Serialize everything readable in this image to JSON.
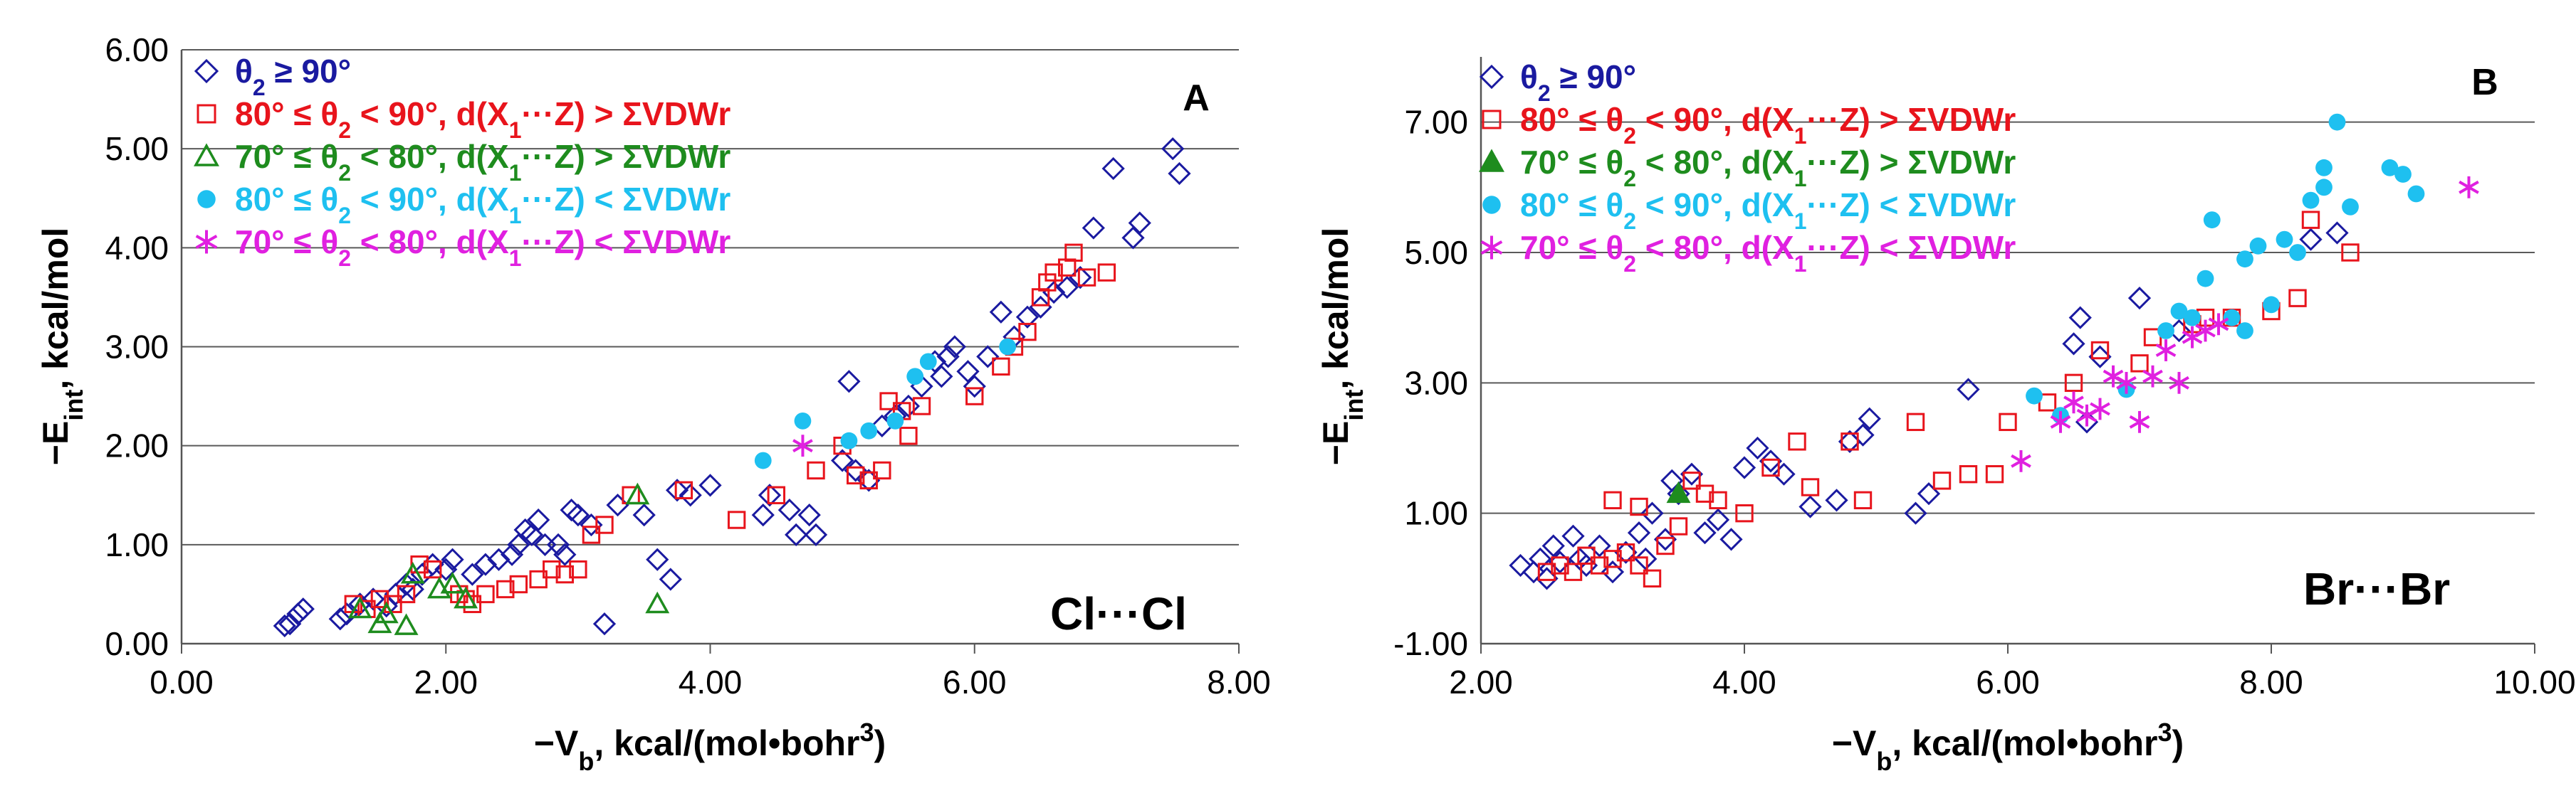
{
  "chart_data": [
    {
      "panel": "A",
      "type": "scatter",
      "annotation": "Cl···Cl",
      "xlabel": "−V b, kcal/(mol•bohr³)",
      "xlabel_parts": [
        "−V",
        "b",
        ", kcal/(mol•bohr",
        "3",
        ")"
      ],
      "ylabel_parts": [
        "−E",
        "int",
        ", kcal/mol"
      ],
      "xlim": [
        0,
        8
      ],
      "ylim": [
        0,
        6
      ],
      "xticks": [
        "0.00",
        "2.00",
        "4.00",
        "6.00",
        "8.00"
      ],
      "yticks": [
        "0.00",
        "1.00",
        "2.00",
        "3.00",
        "4.00",
        "5.00",
        "6.00"
      ],
      "series": [
        {
          "name": "θ₂ ≥ 90°",
          "marker": "diamond",
          "color": "#1a1aa0",
          "points": [
            [
              0.78,
              0.18
            ],
            [
              0.82,
              0.2
            ],
            [
              0.88,
              0.3
            ],
            [
              0.92,
              0.35
            ],
            [
              1.2,
              0.25
            ],
            [
              1.25,
              0.3
            ],
            [
              1.35,
              0.4
            ],
            [
              1.45,
              0.45
            ],
            [
              1.55,
              0.38
            ],
            [
              1.62,
              0.5
            ],
            [
              1.7,
              0.6
            ],
            [
              1.75,
              0.55
            ],
            [
              1.82,
              0.7
            ],
            [
              1.9,
              0.8
            ],
            [
              2.0,
              0.75
            ],
            [
              2.05,
              0.85
            ],
            [
              2.2,
              0.7
            ],
            [
              2.3,
              0.8
            ],
            [
              2.4,
              0.85
            ],
            [
              2.5,
              0.9
            ],
            [
              2.55,
              1.0
            ],
            [
              2.6,
              1.15
            ],
            [
              2.65,
              1.1
            ],
            [
              2.7,
              1.25
            ],
            [
              2.75,
              1.0
            ],
            [
              2.85,
              1.0
            ],
            [
              2.9,
              0.9
            ],
            [
              2.95,
              1.35
            ],
            [
              3.0,
              1.3
            ],
            [
              3.1,
              1.2
            ],
            [
              3.2,
              0.2
            ],
            [
              3.3,
              1.4
            ],
            [
              3.5,
              1.3
            ],
            [
              3.6,
              0.85
            ],
            [
              3.7,
              0.65
            ],
            [
              3.75,
              1.55
            ],
            [
              3.85,
              1.5
            ],
            [
              4.0,
              1.6
            ],
            [
              4.4,
              1.3
            ],
            [
              4.45,
              1.5
            ],
            [
              4.6,
              1.35
            ],
            [
              4.65,
              1.1
            ],
            [
              4.75,
              1.3
            ],
            [
              4.8,
              1.1
            ],
            [
              5.0,
              1.85
            ],
            [
              5.1,
              1.75
            ],
            [
              5.05,
              2.65
            ],
            [
              5.2,
              1.65
            ],
            [
              5.3,
              2.2
            ],
            [
              5.4,
              2.3
            ],
            [
              5.5,
              2.4
            ],
            [
              5.6,
              2.6
            ],
            [
              5.7,
              2.85
            ],
            [
              5.75,
              2.7
            ],
            [
              5.8,
              2.9
            ],
            [
              5.85,
              3.0
            ],
            [
              5.95,
              2.75
            ],
            [
              6.0,
              2.6
            ],
            [
              6.1,
              2.9
            ],
            [
              6.2,
              3.35
            ],
            [
              6.3,
              3.1
            ],
            [
              6.4,
              3.3
            ],
            [
              6.5,
              3.4
            ],
            [
              6.6,
              3.55
            ],
            [
              6.7,
              3.6
            ],
            [
              6.8,
              3.7
            ],
            [
              6.9,
              4.2
            ],
            [
              7.05,
              4.8
            ],
            [
              7.2,
              4.1
            ],
            [
              7.25,
              4.25
            ],
            [
              7.5,
              5.0
            ],
            [
              7.55,
              4.75
            ]
          ]
        },
        {
          "name": "80° ≤ θ₂ < 90°, d(X₁···Z) > ΣVDWr",
          "marker": "square",
          "color": "#e8141c",
          "points": [
            [
              1.3,
              0.4
            ],
            [
              1.4,
              0.35
            ],
            [
              1.5,
              0.45
            ],
            [
              1.6,
              0.4
            ],
            [
              1.7,
              0.5
            ],
            [
              1.8,
              0.8
            ],
            [
              1.9,
              0.75
            ],
            [
              2.1,
              0.5
            ],
            [
              2.15,
              0.45
            ],
            [
              2.2,
              0.4
            ],
            [
              2.3,
              0.5
            ],
            [
              2.45,
              0.55
            ],
            [
              2.55,
              0.6
            ],
            [
              2.7,
              0.65
            ],
            [
              2.8,
              0.75
            ],
            [
              2.9,
              0.7
            ],
            [
              3.0,
              0.75
            ],
            [
              3.1,
              1.1
            ],
            [
              3.2,
              1.2
            ],
            [
              3.4,
              1.5
            ],
            [
              3.8,
              1.55
            ],
            [
              4.2,
              1.25
            ],
            [
              4.5,
              1.5
            ],
            [
              4.8,
              1.75
            ],
            [
              5.0,
              2.0
            ],
            [
              5.1,
              1.7
            ],
            [
              5.2,
              1.65
            ],
            [
              5.3,
              1.75
            ],
            [
              5.35,
              2.45
            ],
            [
              5.45,
              2.35
            ],
            [
              5.5,
              2.1
            ],
            [
              5.6,
              2.4
            ],
            [
              6.0,
              2.5
            ],
            [
              6.2,
              2.8
            ],
            [
              6.3,
              3.0
            ],
            [
              6.4,
              3.15
            ],
            [
              6.5,
              3.5
            ],
            [
              6.55,
              3.65
            ],
            [
              6.6,
              3.75
            ],
            [
              6.7,
              3.8
            ],
            [
              6.75,
              3.95
            ],
            [
              6.85,
              3.7
            ],
            [
              7.0,
              3.75
            ]
          ]
        },
        {
          "name": "70° ≤ θ₂ < 80°, d(X₁···Z) > ΣVDWr",
          "marker": "triangle",
          "color": "#1e8c1e",
          "points": [
            [
              1.35,
              0.35
            ],
            [
              1.5,
              0.2
            ],
            [
              1.55,
              0.3
            ],
            [
              1.7,
              0.18
            ],
            [
              1.75,
              0.7
            ],
            [
              1.95,
              0.55
            ],
            [
              2.05,
              0.6
            ],
            [
              2.15,
              0.45
            ],
            [
              3.45,
              1.5
            ],
            [
              3.6,
              0.4
            ]
          ]
        },
        {
          "name": "80° ≤ θ₂ < 90°, d(X₁···Z) < ΣVDWr",
          "marker": "circle",
          "color": "#1ec0f0",
          "points": [
            [
              4.4,
              1.85
            ],
            [
              4.7,
              2.25
            ],
            [
              5.05,
              2.05
            ],
            [
              5.2,
              2.15
            ],
            [
              5.4,
              2.25
            ],
            [
              5.55,
              2.7
            ],
            [
              5.65,
              2.85
            ],
            [
              6.25,
              3.0
            ]
          ]
        },
        {
          "name": "70° ≤ θ₂ < 80°, d(X₁···Z) < ΣVDWr",
          "marker": "asterisk",
          "color": "#e020e0",
          "points": [
            [
              4.7,
              2.0
            ]
          ]
        }
      ]
    },
    {
      "panel": "B",
      "type": "scatter",
      "annotation": "Br···Br",
      "xlabel_parts": [
        "−V",
        "b",
        ", kcal/(mol•bohr",
        "3",
        ")"
      ],
      "ylabel_parts": [
        "−E",
        "int",
        ", kcal/mol"
      ],
      "xlim": [
        2,
        10
      ],
      "ylim": [
        -1,
        8
      ],
      "xticks": [
        "2.00",
        "4.00",
        "6.00",
        "8.00",
        "10.00"
      ],
      "yticks": [
        "-1.00",
        "1.00",
        "3.00",
        "5.00",
        "7.00"
      ],
      "series": [
        {
          "name": "θ₂ ≥ 90°",
          "marker": "diamond",
          "color": "#1a1aa0",
          "points": [
            [
              2.3,
              0.2
            ],
            [
              2.4,
              0.1
            ],
            [
              2.45,
              0.3
            ],
            [
              2.5,
              0.0
            ],
            [
              2.55,
              0.5
            ],
            [
              2.6,
              0.25
            ],
            [
              2.7,
              0.65
            ],
            [
              2.75,
              0.3
            ],
            [
              2.8,
              0.2
            ],
            [
              2.9,
              0.5
            ],
            [
              3.0,
              0.1
            ],
            [
              3.1,
              0.4
            ],
            [
              3.2,
              0.7
            ],
            [
              3.25,
              0.3
            ],
            [
              3.3,
              1.0
            ],
            [
              3.4,
              0.6
            ],
            [
              3.45,
              1.5
            ],
            [
              3.5,
              1.3
            ],
            [
              3.6,
              1.6
            ],
            [
              3.7,
              0.7
            ],
            [
              3.8,
              0.9
            ],
            [
              3.9,
              0.6
            ],
            [
              4.0,
              1.7
            ],
            [
              4.1,
              2.0
            ],
            [
              4.2,
              1.8
            ],
            [
              4.3,
              1.6
            ],
            [
              4.5,
              1.1
            ],
            [
              4.7,
              1.2
            ],
            [
              4.8,
              2.1
            ],
            [
              4.9,
              2.2
            ],
            [
              4.95,
              2.45
            ],
            [
              5.3,
              1.0
            ],
            [
              5.4,
              1.3
            ],
            [
              5.7,
              2.9
            ],
            [
              6.5,
              3.6
            ],
            [
              6.55,
              4.0
            ],
            [
              6.7,
              3.4
            ],
            [
              6.6,
              2.4
            ],
            [
              7.0,
              4.3
            ],
            [
              7.3,
              3.8
            ],
            [
              8.5,
              5.3
            ],
            [
              8.3,
              5.2
            ]
          ]
        },
        {
          "name": "80° ≤ θ₂ < 90°, d(X₁···Z) > ΣVDWr",
          "marker": "square",
          "color": "#e8141c",
          "points": [
            [
              2.5,
              0.1
            ],
            [
              2.6,
              0.2
            ],
            [
              2.7,
              0.1
            ],
            [
              2.8,
              0.35
            ],
            [
              2.9,
              0.2
            ],
            [
              3.0,
              0.3
            ],
            [
              3.0,
              1.2
            ],
            [
              3.1,
              0.4
            ],
            [
              3.2,
              0.2
            ],
            [
              3.2,
              1.1
            ],
            [
              3.3,
              0.0
            ],
            [
              3.4,
              0.5
            ],
            [
              3.5,
              0.8
            ],
            [
              3.6,
              1.5
            ],
            [
              3.7,
              1.3
            ],
            [
              3.8,
              1.2
            ],
            [
              4.0,
              1.0
            ],
            [
              4.2,
              1.7
            ],
            [
              4.4,
              2.1
            ],
            [
              4.5,
              1.4
            ],
            [
              4.8,
              2.1
            ],
            [
              4.9,
              1.2
            ],
            [
              5.3,
              2.4
            ],
            [
              5.5,
              1.5
            ],
            [
              5.7,
              1.6
            ],
            [
              5.9,
              1.6
            ],
            [
              6.0,
              2.4
            ],
            [
              6.3,
              2.7
            ],
            [
              6.5,
              3.0
            ],
            [
              6.7,
              3.5
            ],
            [
              7.0,
              3.3
            ],
            [
              7.1,
              3.7
            ],
            [
              7.4,
              3.9
            ],
            [
              7.5,
              4.0
            ],
            [
              7.7,
              4.0
            ],
            [
              8.0,
              4.1
            ],
            [
              8.2,
              4.3
            ],
            [
              8.3,
              5.5
            ],
            [
              8.6,
              5.0
            ]
          ]
        },
        {
          "name": "70° ≤ θ₂ < 80°, d(X₁···Z) > ΣVDWr",
          "marker": "triangle-filled",
          "color": "#1e8c1e",
          "points": [
            [
              3.5,
              1.3
            ]
          ]
        },
        {
          "name": "80° ≤ θ₂ < 90°, d(X₁···Z) < ΣVDWr",
          "marker": "circle",
          "color": "#1ec0f0",
          "points": [
            [
              6.2,
              2.8
            ],
            [
              6.4,
              2.5
            ],
            [
              6.9,
              2.9
            ],
            [
              7.2,
              3.8
            ],
            [
              7.3,
              4.1
            ],
            [
              7.4,
              4.0
            ],
            [
              7.5,
              4.6
            ],
            [
              7.55,
              5.5
            ],
            [
              7.7,
              4.0
            ],
            [
              7.8,
              3.8
            ],
            [
              7.8,
              4.9
            ],
            [
              7.9,
              5.1
            ],
            [
              8.0,
              4.2
            ],
            [
              8.1,
              5.2
            ],
            [
              8.2,
              5.0
            ],
            [
              8.3,
              5.8
            ],
            [
              8.4,
              6.3
            ],
            [
              8.4,
              6.0
            ],
            [
              8.5,
              7.0
            ],
            [
              8.6,
              5.7
            ],
            [
              8.9,
              6.3
            ],
            [
              9.0,
              6.2
            ],
            [
              9.1,
              5.9
            ]
          ]
        },
        {
          "name": "70° ≤ θ₂ < 80°, d(X₁···Z) < ΣVDWr",
          "marker": "asterisk",
          "color": "#e020e0",
          "points": [
            [
              6.1,
              1.8
            ],
            [
              6.4,
              2.4
            ],
            [
              6.5,
              2.7
            ],
            [
              6.6,
              2.5
            ],
            [
              6.7,
              2.6
            ],
            [
              6.8,
              3.1
            ],
            [
              6.9,
              3.0
            ],
            [
              7.0,
              2.4
            ],
            [
              7.1,
              3.1
            ],
            [
              7.2,
              3.5
            ],
            [
              7.3,
              3.0
            ],
            [
              7.4,
              3.7
            ],
            [
              7.5,
              3.8
            ],
            [
              7.6,
              3.9
            ],
            [
              9.5,
              6.0
            ]
          ]
        }
      ]
    }
  ]
}
